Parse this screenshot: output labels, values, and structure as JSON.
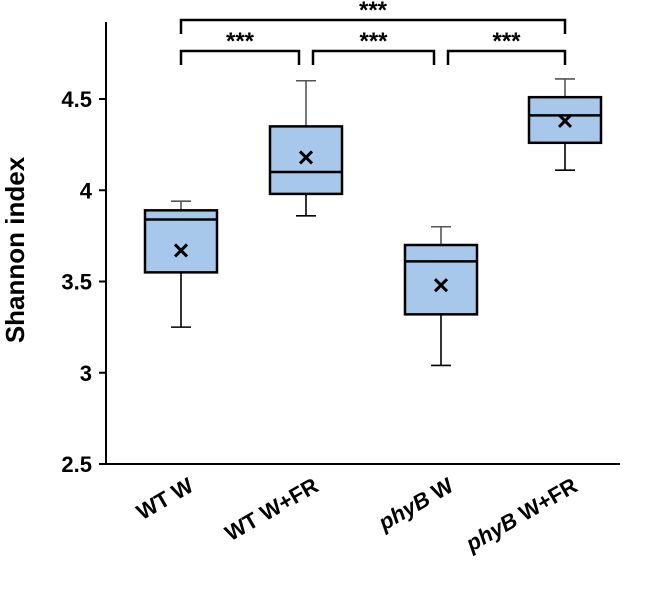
{
  "chart_data": {
    "type": "box",
    "ylabel": "Shannon index",
    "ylim": [
      2.5,
      4.7
    ],
    "yticks": [
      "2.5",
      "3",
      "3.5",
      "4",
      "4.5"
    ],
    "grid": false,
    "categories": [
      {
        "prefix": "",
        "italic": "",
        "suffix": "WT W"
      },
      {
        "prefix": "",
        "italic": "",
        "suffix": "WT W+FR"
      },
      {
        "prefix": "",
        "italic": "phyB",
        "suffix": " W"
      },
      {
        "prefix": "",
        "italic": "phyB",
        "suffix": " W+FR"
      }
    ],
    "boxes": [
      {
        "min": 3.25,
        "q1": 3.55,
        "median": 3.84,
        "q3": 3.89,
        "max": 3.94,
        "mean": 3.67
      },
      {
        "min": 3.86,
        "q1": 3.98,
        "median": 4.1,
        "q3": 4.35,
        "max": 4.6,
        "mean": 4.18
      },
      {
        "min": 3.04,
        "q1": 3.32,
        "median": 3.61,
        "q3": 3.7,
        "max": 3.8,
        "mean": 3.48
      },
      {
        "min": 4.11,
        "q1": 4.26,
        "median": 4.41,
        "q3": 4.51,
        "max": 4.61,
        "mean": 4.38
      }
    ],
    "significance": [
      {
        "from": 0,
        "to": 1,
        "label": "***",
        "level": 1
      },
      {
        "from": 1,
        "to": 2,
        "label": "***",
        "level": 1
      },
      {
        "from": 2,
        "to": 3,
        "label": "***",
        "level": 1
      },
      {
        "from": 0,
        "to": 3,
        "label": "***",
        "level": 2
      }
    ],
    "colors": {
      "box_fill": "#a7c8ea",
      "box_stroke": "#000000",
      "whisker": "#000000",
      "mean_marker": "#000000"
    }
  }
}
